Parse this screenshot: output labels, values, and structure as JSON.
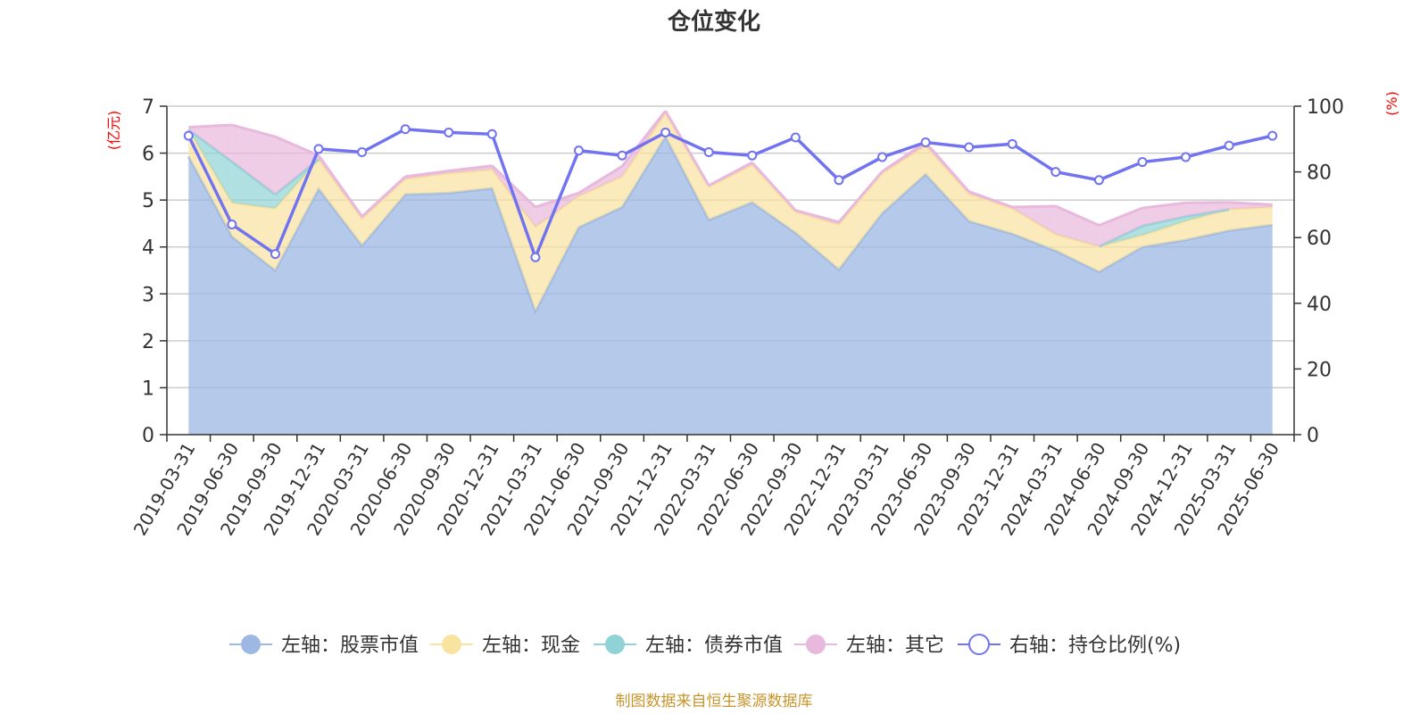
{
  "colors": {
    "stock": "#9cb8e3",
    "cash": "#f9e3a0",
    "bond": "#8fd3d6",
    "other": "#e8b8dd",
    "ratio": "#7273f0",
    "unit": "#ff0000",
    "source": "#c8952c"
  },
  "chart_data": {
    "type": "area",
    "title": "仓位变化",
    "left_unit": "(亿元)",
    "right_unit": "(%)",
    "source_note": "制图数据来自恒生聚源数据库",
    "x": [
      "2019-03-31",
      "2019-06-30",
      "2019-09-30",
      "2019-12-31",
      "2020-03-31",
      "2020-06-30",
      "2020-09-30",
      "2020-12-31",
      "2021-03-31",
      "2021-06-30",
      "2021-09-30",
      "2021-12-31",
      "2022-03-31",
      "2022-06-30",
      "2022-09-30",
      "2022-12-31",
      "2023-03-31",
      "2023-06-30",
      "2023-09-30",
      "2023-12-31",
      "2024-03-31",
      "2024-06-30",
      "2024-09-30",
      "2024-12-31",
      "2025-03-31",
      "2025-06-30"
    ],
    "y_left": {
      "min": 0,
      "max": 7,
      "ticks": [
        0,
        1,
        2,
        3,
        4,
        5,
        6,
        7
      ]
    },
    "y_right": {
      "min": 0,
      "max": 100,
      "ticks": [
        0,
        20,
        40,
        60,
        80,
        100
      ]
    },
    "stacked_series": [
      {
        "key": "stock",
        "name": "左轴：股票市值",
        "values": [
          5.93,
          4.22,
          3.5,
          5.24,
          4.03,
          5.12,
          5.15,
          5.25,
          2.63,
          4.42,
          4.85,
          6.35,
          4.58,
          4.95,
          4.3,
          3.52,
          4.72,
          5.55,
          4.55,
          4.28,
          3.92,
          3.47,
          4.0,
          4.15,
          4.35,
          4.47
        ]
      },
      {
        "key": "cash",
        "name": "左轴：现金",
        "values": [
          0.57,
          0.72,
          1.32,
          0.63,
          0.57,
          0.33,
          0.42,
          0.4,
          1.8,
          0.66,
          0.65,
          0.5,
          0.7,
          0.8,
          0.45,
          0.96,
          0.85,
          0.61,
          0.58,
          0.54,
          0.35,
          0.54,
          0.25,
          0.4,
          0.45,
          0.38
        ]
      },
      {
        "key": "bond",
        "name": "左轴：债券市值",
        "values": [
          0,
          0.88,
          0.3,
          0,
          0,
          0,
          0,
          0,
          0,
          0,
          0,
          0,
          0,
          0,
          0,
          0,
          0,
          0,
          0,
          0,
          0,
          0,
          0.2,
          0.1,
          0,
          0
        ]
      },
      {
        "key": "other",
        "name": "左轴：其它",
        "values": [
          0.05,
          0.78,
          1.23,
          0.08,
          0.05,
          0.05,
          0.05,
          0.08,
          0.42,
          0.07,
          0.22,
          0.05,
          0.03,
          0.05,
          0.03,
          0.05,
          0.04,
          0.07,
          0.05,
          0.03,
          0.6,
          0.45,
          0.38,
          0.29,
          0.15,
          0.05
        ]
      }
    ],
    "line_series": {
      "key": "ratio",
      "name": "右轴：持仓比例(%)",
      "values": [
        91,
        64,
        55,
        87,
        86,
        93,
        92,
        91.5,
        54,
        86.5,
        85,
        92,
        86,
        85,
        90.5,
        77.5,
        84.5,
        89,
        87.5,
        88.5,
        80,
        77.5,
        83,
        84.5,
        88,
        91
      ]
    },
    "grid": true,
    "legend_position": "bottom"
  }
}
